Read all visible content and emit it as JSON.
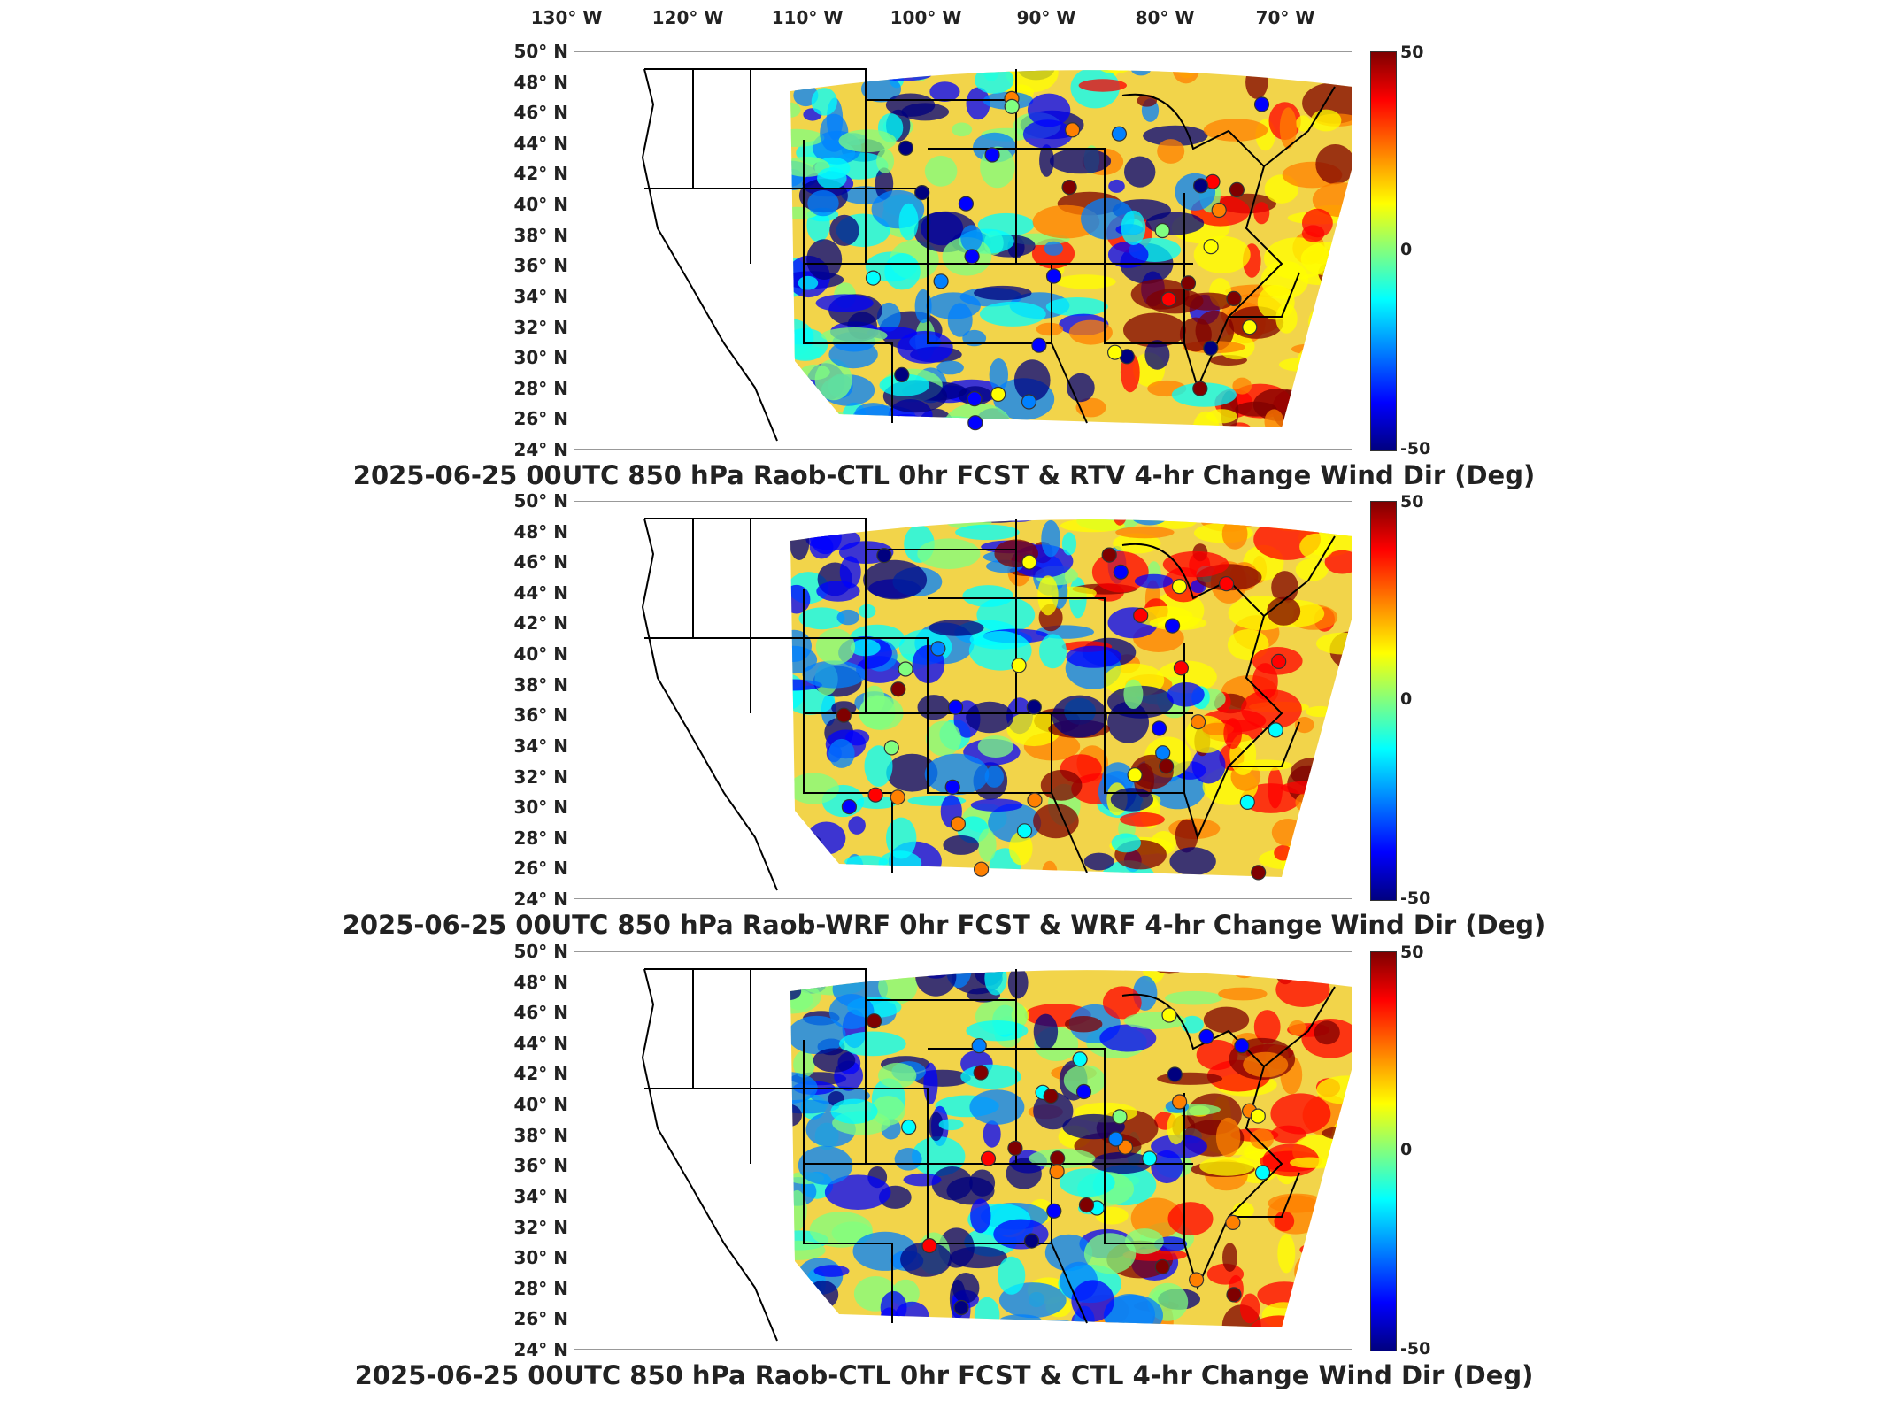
{
  "longitude_labels": [
    "130° W",
    "120° W",
    "110° W",
    "100° W",
    "90° W",
    "80° W",
    "70° W"
  ],
  "latitude_labels": [
    "50° N",
    "48° N",
    "46° N",
    "44° N",
    "42° N",
    "40° N",
    "38° N",
    "36° N",
    "34° N",
    "32° N",
    "30° N",
    "28° N",
    "26° N",
    "24° N"
  ],
  "colorbar": {
    "max": "50",
    "mid": "0",
    "min": "-50",
    "colors": [
      "#7f0000",
      "#ff0000",
      "#ff8000",
      "#ffff00",
      "#80ff80",
      "#00ffff",
      "#0080ff",
      "#0000ff",
      "#00007f"
    ]
  },
  "panels": [
    {
      "title": "2025-06-25 00UTC 850 hPa Raob-CTL 0hr FCST & RTV 4-hr Change Wind Dir (Deg)"
    },
    {
      "title": "2025-06-25 00UTC 850 hPa Raob-WRF 0hr FCST & WRF 4-hr Change Wind Dir (Deg)"
    },
    {
      "title": "2025-06-25 00UTC 850 hPa Raob-CTL 0hr FCST & CTL 4-hr Change Wind Dir (Deg)"
    }
  ]
}
